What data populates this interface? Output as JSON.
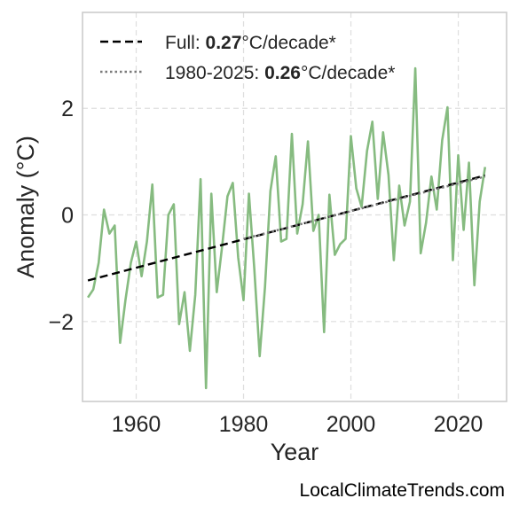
{
  "chart_data": {
    "type": "line",
    "xlabel": "Year",
    "ylabel": "Anomaly (°C)",
    "xlim": [
      1950,
      2029
    ],
    "ylim": [
      -3.5,
      3.8
    ],
    "xticks": [
      1960,
      1980,
      2000,
      2020
    ],
    "yticks": [
      -2,
      0,
      2
    ],
    "ytick_labels": [
      "−2",
      "0",
      "2"
    ],
    "grid": true,
    "legend_position": "top-left",
    "legend": [
      {
        "prefix": "Full: ",
        "value": "0.27",
        "suffix": "°C/decade*",
        "style": "dashed"
      },
      {
        "prefix": "1980-2025: ",
        "value": "0.26",
        "suffix": "°C/decade*",
        "style": "dotted"
      }
    ],
    "credit": "LocalClimateTrends.com",
    "series": [
      {
        "style": "solid",
        "color": "#86bb80",
        "x": [
          1951,
          1952,
          1953,
          1954,
          1955,
          1956,
          1957,
          1958,
          1959,
          1960,
          1961,
          1962,
          1963,
          1964,
          1965,
          1966,
          1967,
          1968,
          1969,
          1970,
          1971,
          1972,
          1973,
          1974,
          1975,
          1976,
          1977,
          1978,
          1979,
          1980,
          1981,
          1982,
          1983,
          1984,
          1985,
          1986,
          1987,
          1988,
          1989,
          1990,
          1991,
          1992,
          1993,
          1994,
          1995,
          1996,
          1997,
          1998,
          1999,
          2000,
          2001,
          2002,
          2003,
          2004,
          2005,
          2006,
          2007,
          2008,
          2009,
          2010,
          2011,
          2012,
          2013,
          2014,
          2015,
          2016,
          2017,
          2018,
          2019,
          2020,
          2021,
          2022,
          2023,
          2024,
          2025
        ],
        "y": [
          -1.55,
          -1.4,
          -0.9,
          0.1,
          -0.35,
          -0.2,
          -2.4,
          -1.6,
          -0.9,
          -0.5,
          -1.15,
          -0.5,
          0.57,
          -1.55,
          -1.5,
          0.0,
          0.2,
          -2.05,
          -1.45,
          -2.55,
          -1.5,
          0.67,
          -3.25,
          0.4,
          -1.45,
          -0.6,
          0.35,
          0.6,
          -0.8,
          -1.6,
          0.4,
          -1.0,
          -2.65,
          -1.35,
          0.45,
          1.1,
          -0.5,
          -0.45,
          1.52,
          -0.35,
          0.2,
          1.38,
          -0.3,
          0.0,
          -2.2,
          0.38,
          -0.75,
          -0.55,
          -0.45,
          1.48,
          0.5,
          0.15,
          1.2,
          1.75,
          0.3,
          1.55,
          0.75,
          -0.85,
          0.55,
          -0.2,
          0.25,
          2.75,
          -0.72,
          -0.15,
          0.72,
          0.1,
          1.4,
          2.02,
          -0.85,
          1.12,
          -0.28,
          0.98,
          -1.32,
          0.25,
          0.9
        ]
      },
      {
        "style": "dashed",
        "color": "#000000",
        "x": [
          1951,
          2025
        ],
        "y": [
          -1.23,
          0.74
        ]
      },
      {
        "style": "dotted",
        "color": "#7a7a7a",
        "x": [
          1980,
          2025
        ],
        "y": [
          -0.45,
          0.72
        ]
      }
    ]
  }
}
